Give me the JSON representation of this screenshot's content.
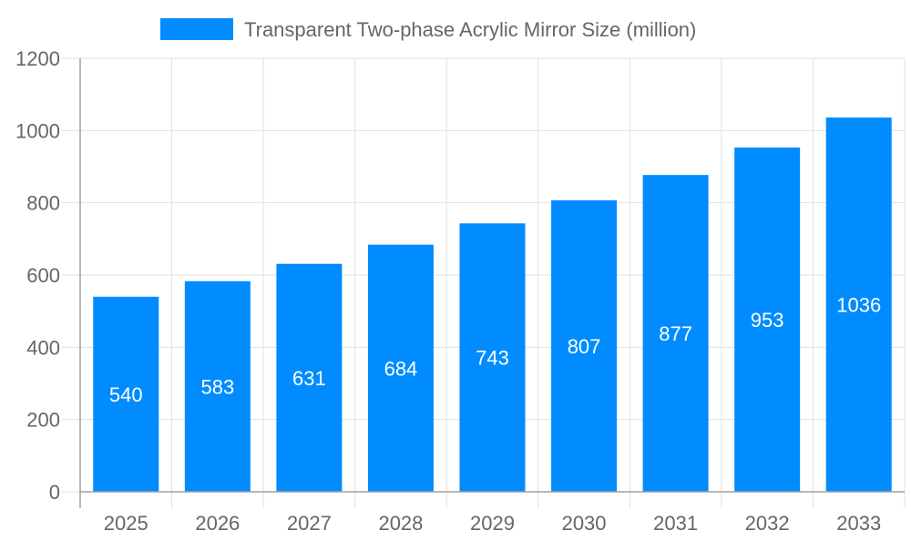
{
  "chart_data": {
    "type": "bar",
    "title": "",
    "xlabel": "",
    "ylabel": "",
    "categories": [
      "2025",
      "2026",
      "2027",
      "2028",
      "2029",
      "2030",
      "2031",
      "2032",
      "2033"
    ],
    "series": [
      {
        "name": "Transparent Two-phase Acrylic Mirror Size (million)",
        "values": [
          540,
          583,
          631,
          684,
          743,
          807,
          877,
          953,
          1036
        ],
        "color": "#008cff"
      }
    ],
    "ylim": [
      0,
      1200
    ],
    "yticks": [
      0,
      200,
      400,
      600,
      800,
      1000,
      1200
    ],
    "grid": true,
    "legend_position": "top",
    "data_labels": true,
    "colors": {
      "bar": "#008cff",
      "grid": "#e0e0e0",
      "axis": "#a0a0a0",
      "text": "#666666",
      "label": "#ffffff"
    }
  }
}
